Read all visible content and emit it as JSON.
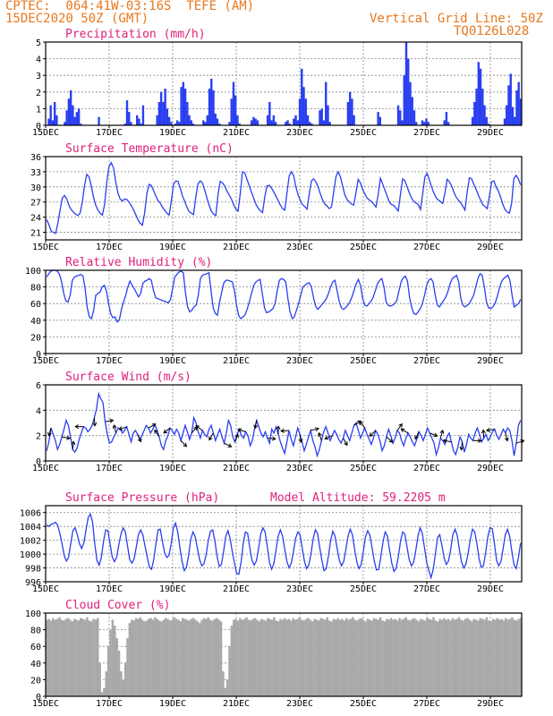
{
  "header": {
    "line1": "CPTEC:  064:41W-03:16S  TEFE (AM)",
    "line2": "15DEC2020 50Z (GMT)",
    "grid_note": "Vertical Grid Line: 50Z",
    "code": "TQ0126L028"
  },
  "colors": {
    "header": "#e8781e",
    "title": "#e0207a",
    "series": "#2a3ff0",
    "cloud": "#a9a9a9",
    "arrows": "#000000"
  },
  "date_ticks": [
    "15DEC",
    "17DEC",
    "19DEC",
    "21DEC",
    "23DEC",
    "25DEC",
    "27DEC",
    "29DEC"
  ],
  "chart_data": [
    {
      "type": "bar",
      "title": "Precipitation (mm/h)",
      "ylim": [
        0,
        5
      ],
      "yticks": [
        "0",
        "1",
        "2",
        "3",
        "4",
        "5"
      ],
      "x_start": "15DEC2020",
      "values": [
        0,
        0.4,
        1.2,
        0.3,
        1.4,
        0.6,
        0,
        0,
        0,
        0.2,
        0.9,
        1.6,
        2.1,
        1.2,
        0.5,
        0.8,
        1.0,
        0.1,
        0,
        0,
        0,
        0,
        0,
        0,
        0,
        0,
        0.5,
        0,
        0,
        0,
        0,
        0,
        0,
        0,
        0,
        0,
        0,
        0,
        0,
        0.1,
        1.5,
        0.8,
        0.2,
        0,
        0,
        0.6,
        0.4,
        0.1,
        1.2,
        0,
        0,
        0,
        0,
        0,
        0,
        0.6,
        1.4,
        2.0,
        1.4,
        2.2,
        1.0,
        0.5,
        0.2,
        0,
        0.1,
        0.3,
        0.2,
        2.3,
        2.6,
        2.2,
        1.4,
        0.6,
        0.3,
        0.1,
        0,
        0,
        0,
        0,
        0.3,
        0.2,
        0.6,
        2.2,
        2.8,
        2.1,
        0.7,
        0.4,
        0.1,
        0,
        0,
        0,
        0,
        0.2,
        1.6,
        2.6,
        1.8,
        0.6,
        0.1,
        0,
        0,
        0,
        0,
        0,
        0.3,
        0.5,
        0.4,
        0.3,
        0,
        0,
        0,
        0,
        0.6,
        1.4,
        0.3,
        0.6,
        0.2,
        0,
        0,
        0,
        0,
        0.2,
        0.3,
        0.1,
        0,
        0.4,
        0.6,
        0.3,
        1.6,
        3.4,
        2.3,
        1.6,
        0.6,
        0.2,
        0.1,
        0,
        0,
        0,
        0.9,
        1.0,
        0.3,
        2.6,
        1.2,
        0.2,
        0,
        0,
        0,
        0,
        0,
        0,
        0,
        0,
        1.4,
        2.0,
        1.6,
        0.6,
        0,
        0,
        0,
        0,
        0,
        0,
        0,
        0,
        0,
        0,
        0,
        0.8,
        0.5,
        0,
        0,
        0,
        0,
        0,
        0,
        0,
        0,
        1.2,
        0.9,
        0.3,
        3.0,
        5.0,
        4.0,
        2.6,
        1.7,
        0.9,
        0.2,
        0,
        0,
        0.3,
        0.2,
        0.4,
        0.2,
        0,
        0,
        0,
        0,
        0,
        0,
        0,
        0.3,
        0.8,
        0.2,
        0,
        0,
        0,
        0,
        0,
        0,
        0,
        0,
        0,
        0,
        0,
        0.5,
        1.4,
        2.2,
        3.8,
        3.4,
        2.2,
        1.2,
        0.5,
        0.1,
        0,
        0,
        0,
        0,
        0,
        0,
        0,
        0.4,
        1.2,
        2.4,
        3.1,
        1.1,
        0.5,
        2.1,
        2.6,
        1.6
      ]
    },
    {
      "type": "line",
      "title": "Surface Temperature (nC)",
      "ylim": [
        19.5,
        36
      ],
      "yticks": [
        "21",
        "24",
        "27",
        "30",
        "33",
        "36"
      ],
      "values": [
        23.5,
        22.5,
        21.2,
        21.0,
        20.8,
        22.8,
        25.4,
        27.8,
        28.3,
        27.6,
        26.3,
        25.5,
        25.0,
        24.6,
        24.3,
        24.8,
        27.0,
        30.3,
        32.5,
        32.0,
        30.2,
        28.0,
        26.4,
        25.4,
        24.8,
        24.4,
        26.5,
        31.0,
        34.0,
        34.8,
        33.8,
        31.0,
        28.8,
        27.6,
        27.2,
        27.6,
        27.5,
        27.0,
        26.3,
        25.5,
        24.5,
        23.5,
        22.8,
        22.4,
        24.8,
        28.6,
        30.5,
        30.3,
        29.3,
        28.2,
        27.3,
        26.8,
        26.0,
        25.4,
        24.8,
        24.4,
        27.2,
        30.5,
        31.2,
        31.1,
        29.8,
        28.2,
        27.2,
        26.0,
        25.1,
        24.8,
        24.5,
        28.0,
        30.6,
        31.2,
        30.8,
        29.4,
        27.8,
        26.4,
        25.2,
        24.6,
        24.3,
        28.5,
        31.1,
        30.8,
        30.2,
        29.2,
        28.4,
        27.6,
        26.5,
        25.6,
        25.2,
        28.7,
        33.0,
        32.8,
        31.5,
        30.3,
        29.0,
        27.8,
        26.6,
        25.8,
        25.3,
        24.9,
        28.0,
        30.2,
        30.3,
        29.8,
        29.0,
        28.2,
        27.3,
        26.4,
        25.7,
        25.4,
        28.8,
        32.2,
        33.0,
        32.2,
        30.0,
        28.4,
        27.3,
        26.5,
        26.1,
        25.6,
        28.6,
        31.2,
        31.6,
        31.0,
        30.0,
        28.6,
        27.4,
        26.6,
        26.2,
        25.7,
        26.0,
        29.0,
        32.0,
        33.0,
        32.0,
        30.2,
        28.4,
        27.5,
        27.0,
        26.6,
        26.4,
        28.8,
        31.5,
        30.8,
        29.5,
        28.6,
        27.8,
        27.4,
        27.1,
        26.6,
        26.0,
        28.5,
        31.7,
        30.6,
        29.4,
        28.2,
        27.0,
        26.5,
        26.3,
        25.8,
        25.2,
        28.5,
        31.6,
        31.2,
        30.0,
        28.8,
        27.8,
        27.1,
        26.8,
        26.5,
        25.5,
        28.6,
        32.0,
        32.7,
        31.4,
        30.0,
        28.8,
        27.9,
        27.4,
        27.1,
        26.7,
        28.8,
        31.5,
        31.0,
        30.2,
        29.0,
        28.0,
        27.4,
        26.9,
        26.2,
        25.4,
        29.0,
        31.8,
        31.6,
        30.5,
        29.5,
        28.4,
        27.4,
        26.5,
        26.1,
        25.7,
        28.2,
        31.0,
        31.2,
        30.0,
        29.2,
        28.0,
        26.6,
        25.5,
        25.0,
        24.8,
        26.8,
        31.7,
        32.3,
        31.6,
        30.4
      ]
    },
    {
      "type": "line",
      "title": "Relative Humidity (%)",
      "ylim": [
        0,
        100
      ],
      "yticks": [
        "0",
        "20",
        "40",
        "60",
        "80",
        "100"
      ],
      "values": [
        92,
        96,
        99,
        100,
        100,
        99,
        95,
        86,
        72,
        63,
        62,
        70,
        88,
        92,
        93,
        94,
        95,
        93,
        78,
        55,
        44,
        42,
        52,
        70,
        72,
        74,
        80,
        82,
        75,
        60,
        48,
        43,
        44,
        38,
        40,
        53,
        62,
        70,
        80,
        87,
        82,
        78,
        73,
        68,
        72,
        84,
        87,
        88,
        90,
        88,
        76,
        67,
        66,
        65,
        64,
        63,
        62,
        61,
        65,
        78,
        92,
        95,
        98,
        99,
        97,
        73,
        56,
        50,
        52,
        56,
        58,
        70,
        90,
        94,
        95,
        96,
        97,
        75,
        55,
        48,
        46,
        62,
        74,
        85,
        88,
        88,
        87,
        86,
        75,
        57,
        45,
        42,
        44,
        47,
        54,
        63,
        73,
        82,
        86,
        88,
        89,
        72,
        55,
        49,
        50,
        52,
        54,
        60,
        76,
        88,
        90,
        89,
        86,
        66,
        50,
        42,
        44,
        52,
        60,
        70,
        80,
        82,
        84,
        85,
        80,
        67,
        57,
        53,
        56,
        59,
        62,
        66,
        72,
        80,
        86,
        88,
        76,
        63,
        55,
        53,
        55,
        58,
        62,
        68,
        76,
        84,
        89,
        82,
        66,
        58,
        57,
        60,
        63,
        68,
        76,
        84,
        88,
        90,
        80,
        62,
        58,
        57,
        58,
        60,
        64,
        75,
        86,
        91,
        93,
        87,
        67,
        55,
        48,
        47,
        50,
        54,
        60,
        70,
        82,
        88,
        90,
        86,
        70,
        58,
        56,
        60,
        64,
        68,
        75,
        84,
        90,
        92,
        94,
        86,
        66,
        58,
        56,
        58,
        60,
        65,
        70,
        80,
        90,
        96,
        94,
        80,
        62,
        55,
        54,
        56,
        60,
        68,
        78,
        86,
        90,
        92,
        94,
        88,
        70,
        56,
        58,
        60,
        65
      ]
    },
    {
      "type": "line",
      "title": "Surface Wind (m/s)",
      "ylim": [
        0,
        6
      ],
      "yticks": [
        "0",
        "2",
        "4",
        "6"
      ],
      "values": [
        0.8,
        1.5,
        2.6,
        2.1,
        1.6,
        0.9,
        1.3,
        1.9,
        2.5,
        3.2,
        2.8,
        1.9,
        0.9,
        0.7,
        1.0,
        1.7,
        2.2,
        2.7,
        2.6,
        2.3,
        2.5,
        2.8,
        3.4,
        4.1,
        5.3,
        4.9,
        4.6,
        3.1,
        2.1,
        1.4,
        1.5,
        1.9,
        2.2,
        2.6,
        2.5,
        2.2,
        2.4,
        2.7,
        2.1,
        1.5,
        2.2,
        2.4,
        2.1,
        1.7,
        2.0,
        2.4,
        2.8,
        2.6,
        2.2,
        2.5,
        2.9,
        2.4,
        1.9,
        1.2,
        0.9,
        1.6,
        2.0,
        2.6,
        2.4,
        2.1,
        2.5,
        2.2,
        1.6,
        2.2,
        2.8,
        2.3,
        1.7,
        2.2,
        3.4,
        3.0,
        2.3,
        1.8,
        2.4,
        2.1,
        1.9,
        2.5,
        2.8,
        2.2,
        1.6,
        2.1,
        2.5,
        1.9,
        1.4,
        2.2,
        3.2,
        2.8,
        1.9,
        1.5,
        2.1,
        2.5,
        2.0,
        1.8,
        2.3,
        2.0,
        1.2,
        1.6,
        2.5,
        3.2,
        2.7,
        2.2,
        1.9,
        2.3,
        1.8,
        1.4,
        2.5,
        2.2,
        2.7,
        2.1,
        1.5,
        1.0,
        0.6,
        1.5,
        2.4,
        1.7,
        1.2,
        1.9,
        2.6,
        2.1,
        1.5,
        0.8,
        1.3,
        1.9,
        2.4,
        1.6,
        1.1,
        0.4,
        0.9,
        1.6,
        2.3,
        2.7,
        2.2,
        1.6,
        2.0,
        2.4,
        2.1,
        1.7,
        1.4,
        1.8,
        2.4,
        2.0,
        1.6,
        2.2,
        2.8,
        3.0,
        2.4,
        1.8,
        2.2,
        2.6,
        2.1,
        1.7,
        1.3,
        1.8,
        2.4,
        2.1,
        1.6,
        0.8,
        1.2,
        1.9,
        2.5,
        2.0,
        1.4,
        1.8,
        2.4,
        2.2,
        1.6,
        1.2,
        1.8,
        2.2,
        1.9,
        1.5,
        1.2,
        1.7,
        2.3,
        2.0,
        1.6,
        2.1,
        2.6,
        2.2,
        1.8,
        1.4,
        0.5,
        1.0,
        1.8,
        1.6,
        1.3,
        1.9,
        2.2,
        1.5,
        0.8,
        0.5,
        1.1,
        1.9,
        1.5,
        0.7,
        1.3,
        2.1,
        1.8,
        1.6,
        2.2,
        2.6,
        2.1,
        1.5,
        1.8,
        2.1,
        1.6,
        1.9,
        2.3,
        2.5,
        2.0,
        1.7,
        2.1,
        2.5,
        2.2,
        2.6,
        2.4,
        1.6,
        0.4,
        1.4,
        2.8,
        3.2
      ]
    },
    {
      "type": "line",
      "title": "Surface Pressure (hPa)",
      "annotation": "Model Altitude: 59.2205 m",
      "ylim": [
        996,
        1007
      ],
      "yticks": [
        "996",
        "998",
        "1000",
        "1002",
        "1004",
        "1006"
      ],
      "values": [
        1004.2,
        1004.0,
        1004.3,
        1004.4,
        1004.6,
        1004.2,
        1003.0,
        1001.5,
        999.8,
        999.0,
        999.5,
        1001.5,
        1003.4,
        1003.8,
        1002.8,
        1001.5,
        1000.8,
        1001.6,
        1003.5,
        1005.3,
        1005.8,
        1004.6,
        1001.5,
        999.1,
        998.4,
        999.5,
        1001.8,
        1003.5,
        1003.4,
        1001.5,
        999.6,
        998.9,
        999.5,
        1001.3,
        1002.9,
        1003.8,
        1003.2,
        1001.2,
        999.2,
        998.7,
        999.3,
        1001.0,
        1002.8,
        1003.5,
        1002.8,
        1001.2,
        999.6,
        998.1,
        997.8,
        999.2,
        1001.5,
        1003.5,
        1003.6,
        1001.8,
        1000.2,
        999.5,
        999.8,
        1001.5,
        1003.8,
        1004.5,
        1003.2,
        1000.9,
        998.9,
        997.6,
        998.1,
        999.9,
        1002.2,
        1003.2,
        1002.5,
        1000.8,
        999.2,
        998.3,
        998.6,
        999.9,
        1002.0,
        1003.3,
        1003.5,
        1001.9,
        999.7,
        998.2,
        998.5,
        1000.4,
        1002.6,
        1003.4,
        1002.2,
        1000.3,
        998.6,
        997.2,
        997.1,
        998.8,
        1001.6,
        1003.2,
        1003.0,
        1000.9,
        999.1,
        998.4,
        999.0,
        1000.8,
        1002.9,
        1003.8,
        1003.2,
        1001.1,
        998.8,
        997.8,
        998.6,
        1000.6,
        1002.6,
        1003.5,
        1002.6,
        1000.7,
        998.9,
        998.0,
        998.7,
        1000.4,
        1002.3,
        1003.2,
        1002.8,
        1000.9,
        999.0,
        997.9,
        998.4,
        1000.0,
        1002.2,
        1003.5,
        1003.0,
        1001.0,
        999.1,
        997.6,
        997.9,
        999.7,
        1001.9,
        1003.3,
        1002.6,
        1000.8,
        999.1,
        998.3,
        998.9,
        1000.7,
        1002.6,
        1003.6,
        1002.8,
        1000.7,
        998.9,
        997.9,
        998.5,
        1000.4,
        1002.5,
        1003.4,
        1002.7,
        1000.9,
        999.0,
        997.7,
        997.8,
        999.6,
        1001.8,
        1003.2,
        1002.6,
        1000.6,
        998.7,
        997.5,
        997.9,
        999.6,
        1001.8,
        1003.2,
        1002.9,
        1001.0,
        999.2,
        998.3,
        998.8,
        1000.5,
        1002.6,
        1003.8,
        1003.0,
        1000.9,
        998.8,
        997.6,
        996.6,
        997.8,
        1000.1,
        1002.4,
        1002.8,
        1001.2,
        999.4,
        998.5,
        999.0,
        1000.7,
        1002.8,
        1003.6,
        1002.7,
        1000.6,
        998.8,
        998.0,
        998.6,
        1000.2,
        1002.2,
        1003.6,
        1003.2,
        1001.5,
        999.3,
        998.1,
        998.3,
        1000.2,
        1002.5,
        1003.8,
        1003.7,
        1001.6,
        999.1,
        998.3,
        998.9,
        1000.8,
        1002.8,
        1003.6,
        1002.6,
        1000.4,
        998.4,
        997.9,
        999.5,
        1001.6
      ]
    },
    {
      "type": "bar",
      "title": "Cloud Cover (%)",
      "ylim": [
        0,
        100
      ],
      "yticks": [
        "0",
        "20",
        "40",
        "60",
        "80",
        "100"
      ],
      "values": [
        92,
        93,
        91,
        94,
        92,
        93,
        95,
        92,
        91,
        93,
        94,
        92,
        90,
        93,
        92,
        91,
        94,
        93,
        92,
        95,
        91,
        90,
        93,
        92,
        94,
        40,
        5,
        10,
        30,
        60,
        80,
        92,
        85,
        70,
        55,
        30,
        20,
        40,
        70,
        88,
        92,
        91,
        94,
        93,
        95,
        92,
        90,
        91,
        93,
        94,
        92,
        95,
        93,
        91,
        90,
        92,
        94,
        93,
        91,
        92,
        95,
        93,
        92,
        90,
        94,
        93,
        92,
        91,
        93,
        94,
        92,
        90,
        88,
        92,
        94,
        93,
        95,
        92,
        91,
        93,
        94,
        92,
        90,
        30,
        10,
        20,
        60,
        85,
        92,
        93,
        91,
        94,
        92,
        93,
        95,
        92,
        91,
        93,
        94,
        92,
        90,
        93,
        92,
        91,
        94,
        93,
        92,
        95,
        91,
        90,
        93,
        92,
        94,
        92,
        93,
        91,
        94,
        92,
        93,
        95,
        92,
        91,
        93,
        94,
        92,
        90,
        93,
        92,
        91,
        94,
        93,
        92,
        95,
        91,
        90,
        93,
        92,
        94,
        92,
        93,
        91,
        94,
        92,
        93,
        95,
        92,
        91,
        93,
        94,
        92,
        90,
        93,
        92,
        91,
        94,
        93,
        92,
        95,
        91,
        90,
        93,
        92,
        94,
        92,
        93,
        91,
        94,
        92,
        93,
        95,
        92,
        91,
        93,
        94,
        92,
        90,
        93,
        92,
        91,
        94,
        93,
        92,
        95,
        91,
        90,
        93,
        92,
        94,
        92,
        93,
        91,
        94,
        92,
        93,
        95,
        92,
        91,
        93,
        94,
        92,
        90,
        93,
        92,
        91,
        94,
        93,
        92,
        95,
        91,
        90,
        93,
        92,
        94,
        92,
        93,
        91,
        94,
        92,
        93,
        95,
        92,
        91,
        93,
        94
      ]
    }
  ]
}
